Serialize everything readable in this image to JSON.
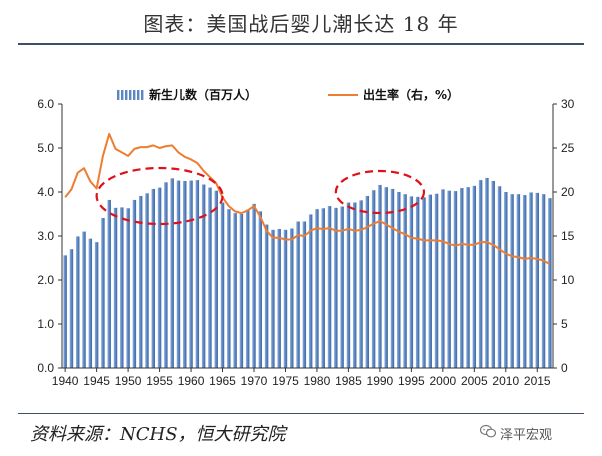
{
  "header": {
    "title": "图表：美国战后婴儿潮长达 18 年"
  },
  "footer": {
    "source": "资料来源：NCHS，恒大研究院",
    "watermark": "泽平宏观"
  },
  "colors": {
    "bars": "#5b86c2",
    "line": "#ed7d31",
    "highlight": "#e0101a",
    "axis": "#333333"
  },
  "chart_data": {
    "type": "bar",
    "x": [
      1940,
      1941,
      1942,
      1943,
      1944,
      1945,
      1946,
      1947,
      1948,
      1949,
      1950,
      1951,
      1952,
      1953,
      1954,
      1955,
      1956,
      1957,
      1958,
      1959,
      1960,
      1961,
      1962,
      1963,
      1964,
      1965,
      1966,
      1967,
      1968,
      1969,
      1970,
      1971,
      1972,
      1973,
      1974,
      1975,
      1976,
      1977,
      1978,
      1979,
      1980,
      1981,
      1982,
      1983,
      1984,
      1985,
      1986,
      1987,
      1988,
      1989,
      1990,
      1991,
      1992,
      1993,
      1994,
      1995,
      1996,
      1997,
      1998,
      1999,
      2000,
      2001,
      2002,
      2003,
      2004,
      2005,
      2006,
      2007,
      2008,
      2009,
      2010,
      2011,
      2012,
      2013,
      2014,
      2015,
      2016,
      2017
    ],
    "xticks": [
      1940,
      1945,
      1950,
      1955,
      1960,
      1965,
      1970,
      1975,
      1980,
      1985,
      1990,
      1995,
      2000,
      2005,
      2010,
      2015
    ],
    "series": [
      {
        "name": "新生儿数（百万人）",
        "type": "bar",
        "axis": "left",
        "values": [
          2.56,
          2.7,
          2.99,
          3.1,
          2.94,
          2.86,
          3.41,
          3.82,
          3.64,
          3.65,
          3.63,
          3.82,
          3.91,
          3.97,
          4.07,
          4.1,
          4.22,
          4.31,
          4.26,
          4.25,
          4.26,
          4.27,
          4.17,
          4.1,
          4.03,
          3.76,
          3.61,
          3.52,
          3.5,
          3.6,
          3.73,
          3.56,
          3.26,
          3.14,
          3.16,
          3.14,
          3.17,
          3.33,
          3.33,
          3.49,
          3.61,
          3.63,
          3.68,
          3.64,
          3.67,
          3.76,
          3.76,
          3.81,
          3.91,
          4.04,
          4.16,
          4.11,
          4.07,
          4.0,
          3.95,
          3.9,
          3.89,
          3.88,
          3.94,
          3.96,
          4.06,
          4.03,
          4.02,
          4.09,
          4.11,
          4.14,
          4.27,
          4.32,
          4.25,
          4.13,
          4.0,
          3.95,
          3.95,
          3.93,
          3.99,
          3.98,
          3.95,
          3.86
        ]
      },
      {
        "name": "出生率（右，%）",
        "type": "line",
        "axis": "right",
        "values": [
          19.4,
          20.3,
          22.2,
          22.7,
          21.2,
          20.4,
          24.1,
          26.6,
          24.9,
          24.5,
          24.1,
          24.9,
          25.1,
          25.1,
          25.3,
          25.0,
          25.2,
          25.3,
          24.5,
          24.0,
          23.7,
          23.3,
          22.4,
          21.7,
          21.0,
          19.4,
          18.4,
          17.8,
          17.6,
          17.9,
          18.4,
          17.2,
          15.6,
          14.8,
          14.8,
          14.6,
          14.6,
          15.1,
          15.0,
          15.6,
          15.9,
          15.8,
          15.9,
          15.6,
          15.6,
          15.8,
          15.6,
          15.7,
          16.0,
          16.4,
          16.7,
          16.3,
          15.9,
          15.5,
          15.2,
          14.8,
          14.7,
          14.5,
          14.5,
          14.5,
          14.4,
          14.1,
          13.9,
          14.1,
          14.0,
          14.0,
          14.3,
          14.3,
          14.0,
          13.5,
          13.0,
          12.7,
          12.6,
          12.4,
          12.5,
          12.4,
          12.2,
          11.8
        ]
      }
    ],
    "yleft": {
      "min": 0,
      "max": 6,
      "step": 1,
      "format": 1
    },
    "yright": {
      "min": 0,
      "max": 30,
      "step": 5
    },
    "legend": "top",
    "grid": false,
    "annotations": [
      {
        "type": "dashed-ellipse",
        "from": 1946,
        "to": 1964
      },
      {
        "type": "dashed-ellipse",
        "from": 1984,
        "to": 1996
      }
    ]
  }
}
